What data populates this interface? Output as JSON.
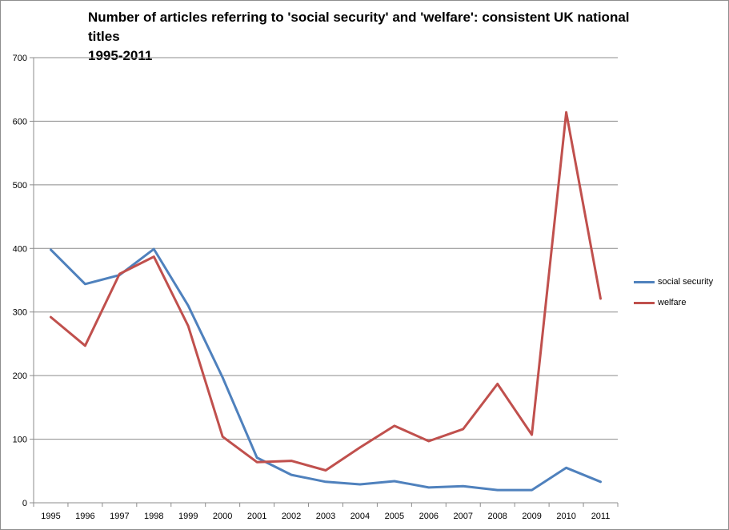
{
  "chart_data": {
    "type": "line",
    "title_lines": [
      "Number of articles referring to 'social security' and 'welfare': consistent UK national titles",
      "1995-2011"
    ],
    "xlabel": "",
    "ylabel": "",
    "x": [
      "1995",
      "1996",
      "1997",
      "1998",
      "1999",
      "2000",
      "2001",
      "2002",
      "2003",
      "2004",
      "2005",
      "2006",
      "2007",
      "2008",
      "2009",
      "2010",
      "2011"
    ],
    "ylim": [
      0,
      700
    ],
    "yticks": [
      0,
      100,
      200,
      300,
      400,
      500,
      600,
      700
    ],
    "grid": true,
    "legend_position": "right",
    "series": [
      {
        "name": "social security",
        "color": "#4f81bd",
        "values": [
          398,
          344,
          358,
          399,
          310,
          197,
          71,
          44,
          33,
          29,
          34,
          24,
          26,
          20,
          20,
          55,
          33
        ]
      },
      {
        "name": "welfare",
        "color": "#c0504d",
        "values": [
          292,
          247,
          360,
          387,
          278,
          104,
          64,
          66,
          51,
          87,
          121,
          97,
          116,
          187,
          107,
          614,
          321
        ]
      }
    ]
  }
}
